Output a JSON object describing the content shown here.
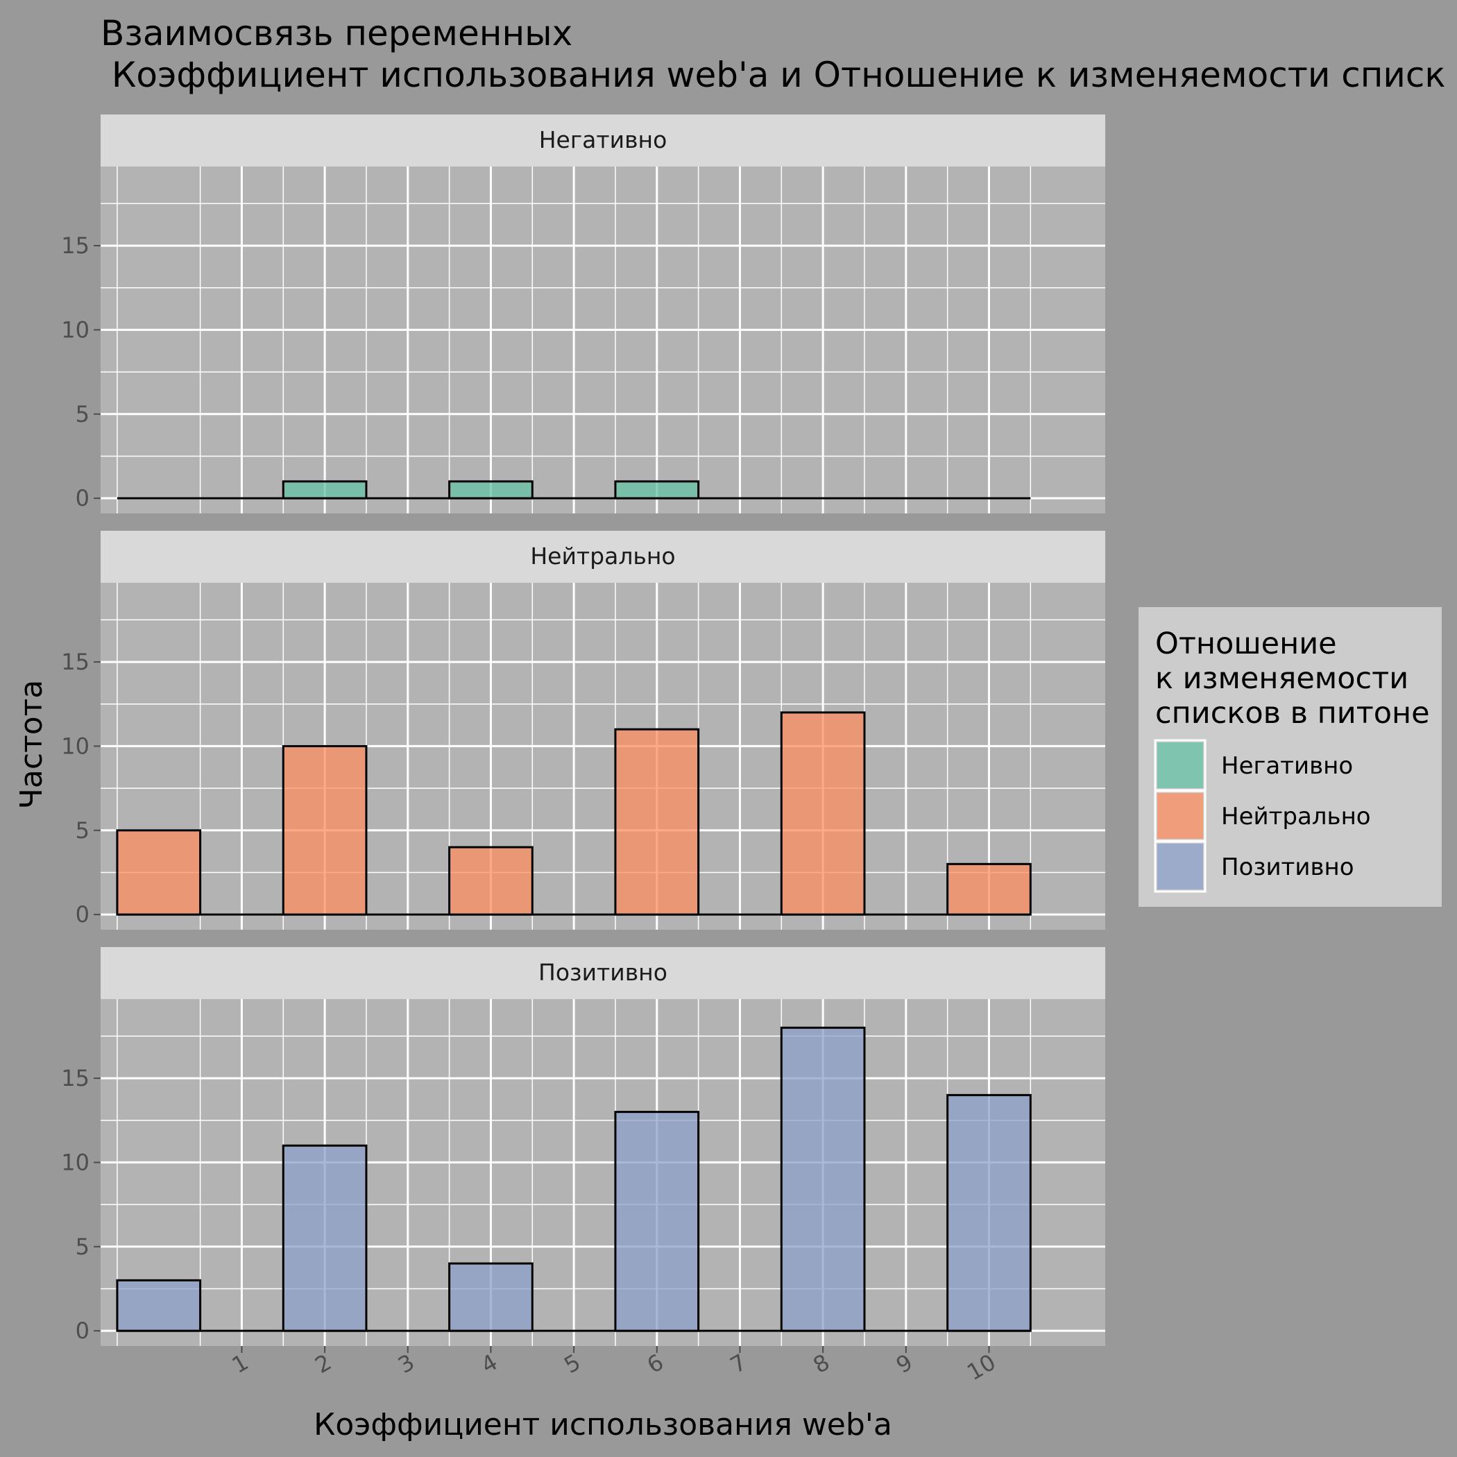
{
  "chart_data": {
    "type": "bar",
    "title_line1": "Взаимосвязь переменных",
    "title_line2": " Коэффициент использования web'a и Отношение к изменяемости списк",
    "xlabel": "Коэффициент использования web'a",
    "ylabel": "Частота",
    "x_ticks": [
      1,
      2,
      3,
      4,
      5,
      6,
      7,
      8,
      9,
      10
    ],
    "y_ticks": [
      0,
      5,
      10,
      15
    ],
    "ylim": [
      -0.9,
      19.7
    ],
    "xlim": [
      -0.7,
      11.4
    ],
    "bar_x": [
      0,
      2,
      4,
      6,
      8,
      10
    ],
    "bar_width": 1,
    "grid": true,
    "legend": {
      "title_lines": [
        "Отношение",
        "к изменяемости",
        "списков в питоне"
      ],
      "position": "right"
    },
    "series": [
      {
        "name": "Негативно",
        "color": "#66C2A5",
        "values": [
          0,
          1,
          1,
          1,
          0,
          0
        ]
      },
      {
        "name": "Нейтрально",
        "color": "#FC8D62",
        "values": [
          5,
          10,
          4,
          11,
          12,
          3
        ]
      },
      {
        "name": "Позитивно",
        "color": "#8DA0CB",
        "values": [
          3,
          11,
          4,
          13,
          18,
          14
        ]
      }
    ]
  }
}
